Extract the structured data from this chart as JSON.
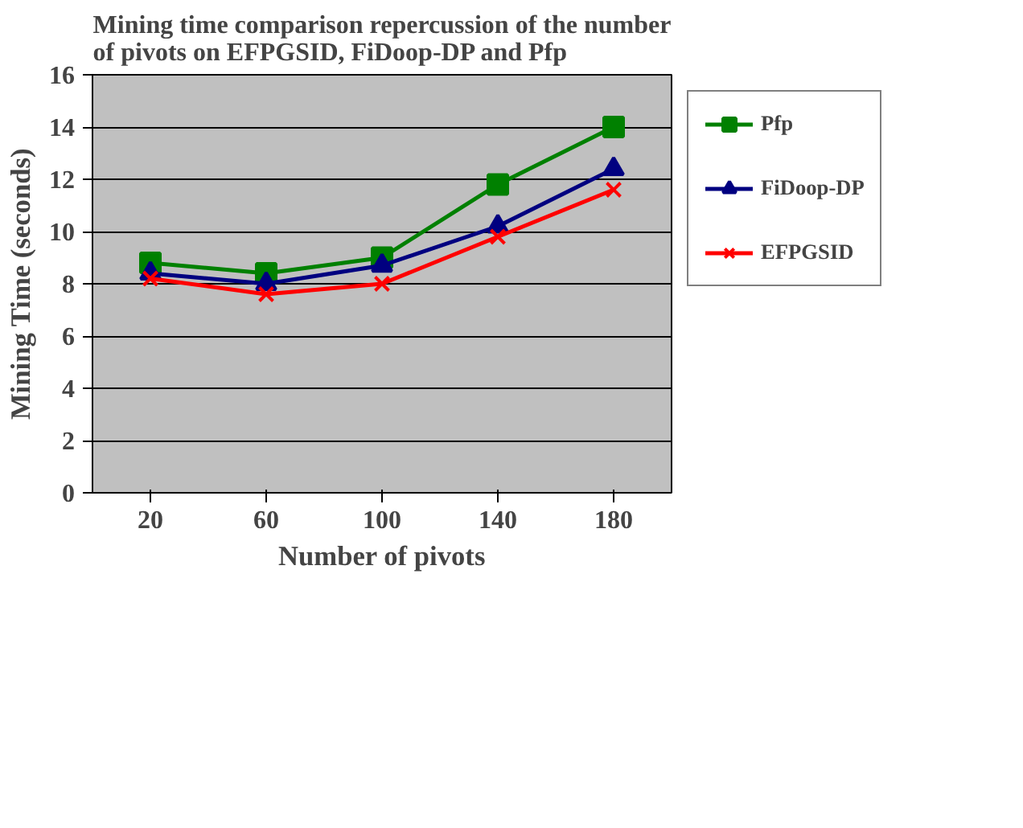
{
  "chart_data": {
    "type": "line",
    "title": "Mining time comparison repercussion of the number of pivots on EFPGSID, FiDoop-DP and Pfp",
    "xlabel": "Number of pivots",
    "ylabel": "Mining Time (seconds)",
    "categories": [
      "20",
      "60",
      "100",
      "140",
      "180"
    ],
    "series": [
      {
        "name": "Pfp",
        "color": "#008000",
        "marker": "square",
        "values": [
          8.8,
          8.4,
          9.0,
          11.8,
          14.0
        ]
      },
      {
        "name": "FiDoop-DP",
        "color": "#000080",
        "marker": "triangle",
        "values": [
          8.4,
          8.0,
          8.7,
          10.2,
          12.4
        ]
      },
      {
        "name": "EFPGSID",
        "color": "#ff0000",
        "marker": "cross",
        "values": [
          8.2,
          7.6,
          8.0,
          9.8,
          11.6
        ]
      }
    ],
    "ylim": [
      0,
      16
    ],
    "yticks": [
      0,
      2,
      4,
      6,
      8,
      10,
      12,
      14,
      16
    ],
    "grid": "y",
    "legend": "right",
    "line_style": "solid"
  }
}
